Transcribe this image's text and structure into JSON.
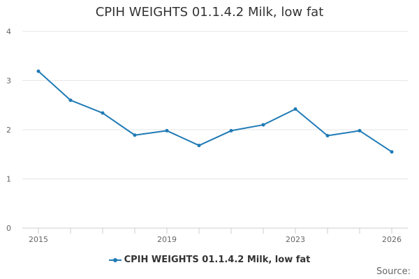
{
  "chart_data": {
    "type": "line",
    "title": "CPIH WEIGHTS 01.1.4.2 Milk, low fat",
    "x": [
      2015,
      2016,
      2017,
      2018,
      2019,
      2020,
      2021,
      2022,
      2023,
      2024,
      2025,
      2026
    ],
    "x_tick_labels": [
      "2015",
      "2019",
      "2023",
      "2026"
    ],
    "x_ticks": [
      2015,
      2019,
      2023,
      2026
    ],
    "y_ticks": [
      0,
      1,
      2,
      3,
      4
    ],
    "y_tick_labels": [
      "0",
      "1",
      "2",
      "3",
      "4"
    ],
    "ylim": [
      0,
      4
    ],
    "xlim": [
      2014.5,
      2026.5
    ],
    "grid": true,
    "legend_position": "bottom",
    "series": [
      {
        "name": "CPIH WEIGHTS 01.1.4.2 Milk, low fat",
        "color": "#1f7ab5",
        "values": [
          3.19,
          2.6,
          2.34,
          1.89,
          1.98,
          1.68,
          1.98,
          2.1,
          2.42,
          1.88,
          1.98,
          1.55
        ]
      }
    ]
  },
  "footer": {
    "source_label": "Source:"
  }
}
